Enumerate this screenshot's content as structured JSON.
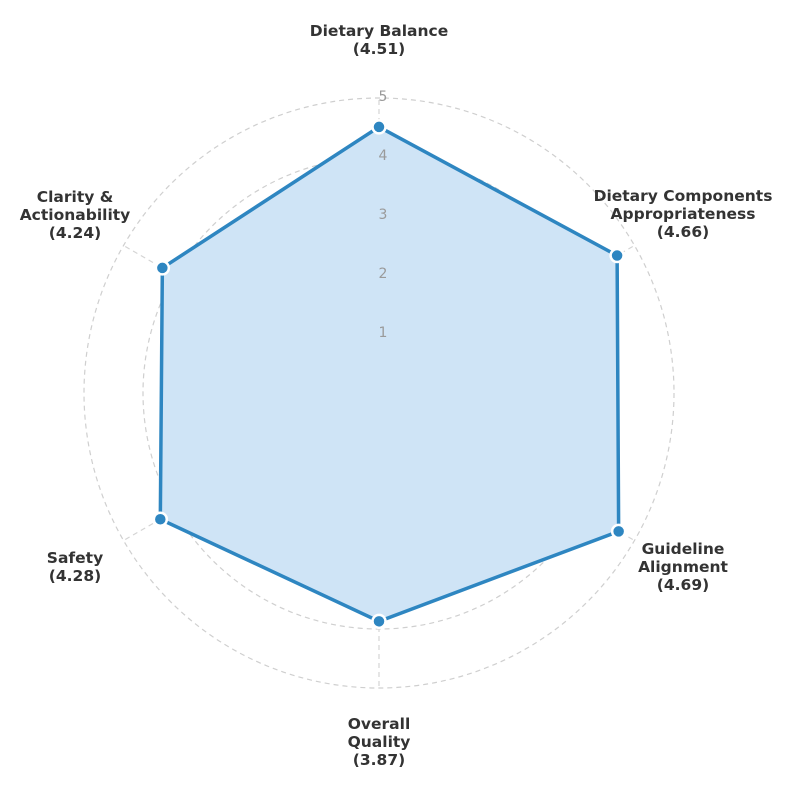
{
  "chart_data": {
    "type": "radar",
    "title": "",
    "axes": [
      {
        "label_lines": [
          "Dietary Balance",
          "(4.51)"
        ],
        "value": 4.51
      },
      {
        "label_lines": [
          "Dietary Components",
          "Appropriateness",
          "(4.66)"
        ],
        "value": 4.66
      },
      {
        "label_lines": [
          "Guideline",
          "Alignment",
          "(4.69)"
        ],
        "value": 4.69
      },
      {
        "label_lines": [
          "Overall",
          "Quality",
          "(3.87)"
        ],
        "value": 3.87
      },
      {
        "label_lines": [
          "Safety",
          "(4.28)"
        ],
        "value": 4.28
      },
      {
        "label_lines": [
          "Clarity &",
          "Actionability",
          "(4.24)"
        ],
        "value": 4.24
      }
    ],
    "r_ticks": [
      "1",
      "2",
      "3",
      "4",
      "5"
    ],
    "r_range": [
      0,
      5
    ],
    "grid": true,
    "colors": {
      "line": "#2e86c1",
      "fill": "#cfe4f6",
      "grid": "#cfcfcf",
      "tick_text": "#9a9a9a",
      "label_text": "#333333"
    }
  }
}
